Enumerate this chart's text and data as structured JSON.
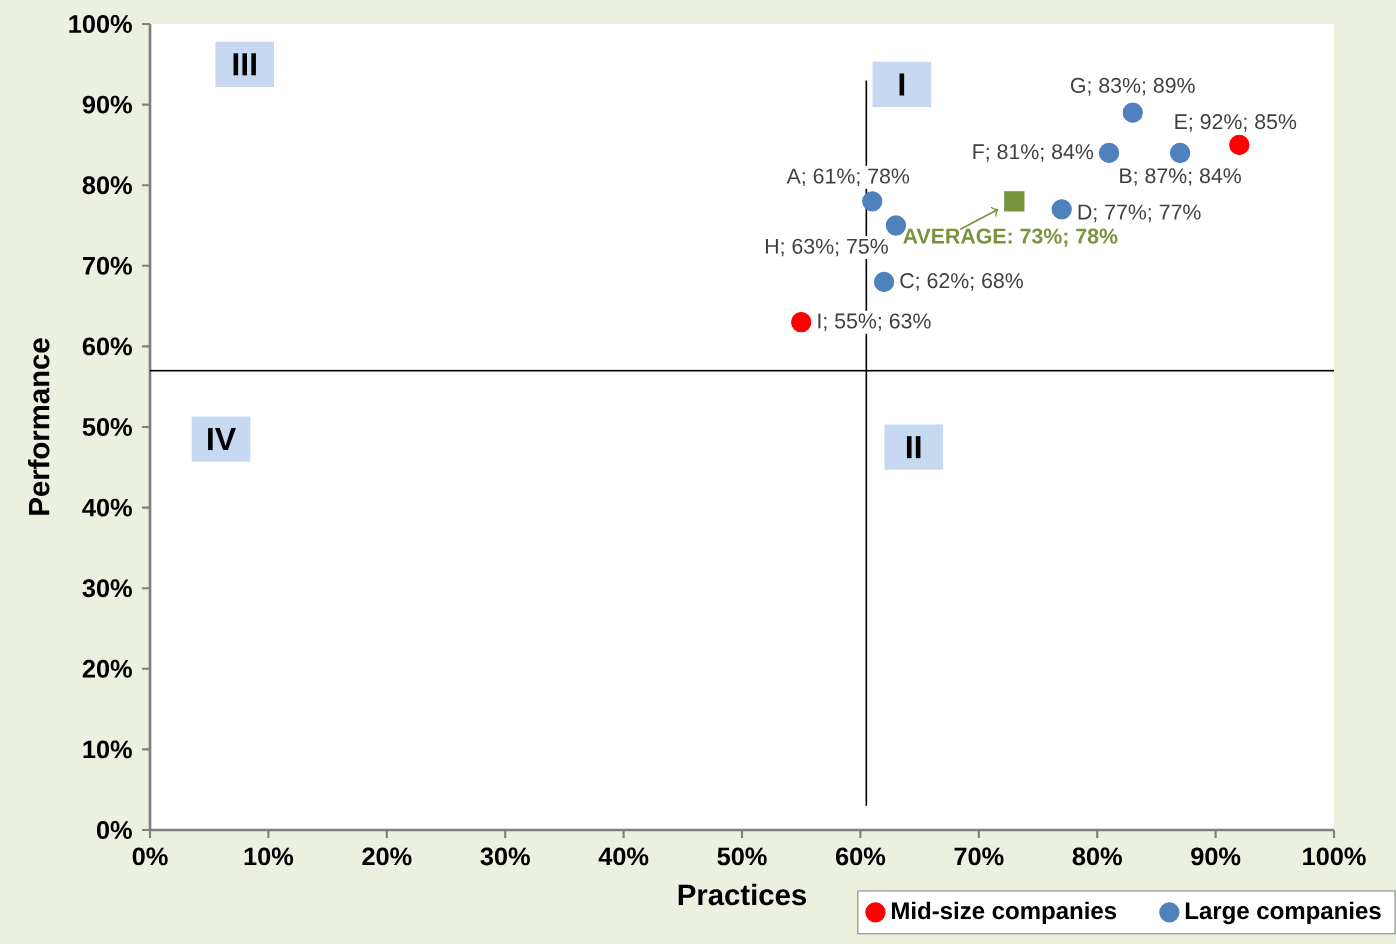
{
  "chart_data": {
    "type": "scatter",
    "xlabel": "Practices",
    "ylabel": "Performance",
    "xlim": [
      0,
      100
    ],
    "ylim": [
      0,
      100
    ],
    "xticks": [
      {
        "value": 0,
        "label": "0%"
      },
      {
        "value": 10,
        "label": "10%"
      },
      {
        "value": 20,
        "label": "20%"
      },
      {
        "value": 30,
        "label": "30%"
      },
      {
        "value": 40,
        "label": "40%"
      },
      {
        "value": 50,
        "label": "50%"
      },
      {
        "value": 60,
        "label": "60%"
      },
      {
        "value": 70,
        "label": "70%"
      },
      {
        "value": 80,
        "label": "80%"
      },
      {
        "value": 90,
        "label": "90%"
      },
      {
        "value": 100,
        "label": "100%"
      }
    ],
    "yticks": [
      {
        "value": 0,
        "label": "0%"
      },
      {
        "value": 10,
        "label": "10%"
      },
      {
        "value": 20,
        "label": "20%"
      },
      {
        "value": 30,
        "label": "30%"
      },
      {
        "value": 40,
        "label": "40%"
      },
      {
        "value": 50,
        "label": "50%"
      },
      {
        "value": 60,
        "label": "60%"
      },
      {
        "value": 70,
        "label": "70%"
      },
      {
        "value": 80,
        "label": "80%"
      },
      {
        "value": 90,
        "label": "90%"
      },
      {
        "value": 100,
        "label": "100%"
      }
    ],
    "legend": "bottom right",
    "series": [
      {
        "name": "Mid-size companies",
        "color": "#ff0000",
        "marker": "circle",
        "x": [
          55,
          92
        ],
        "values": [
          63,
          85
        ],
        "value_labels": [
          "I; 55%; 63%",
          "E; 92%; 85%"
        ]
      },
      {
        "name": "Large companies",
        "color": "#4f81bd",
        "marker": "circle",
        "x": [
          61,
          87,
          62,
          77,
          81,
          83,
          63
        ],
        "values": [
          78,
          84,
          68,
          77,
          84,
          89,
          75
        ],
        "value_labels": [
          "A; 61%; 78%",
          "B; 87%; 84%",
          "C; 62%; 68%",
          "D; 77%; 77%",
          "F; 81%; 84%",
          "G; 83%; 89%",
          "H; 63%; 75%"
        ]
      },
      {
        "color": "#77933c",
        "marker": "square",
        "x": [
          73
        ],
        "values": [
          78
        ],
        "value_labels": [
          "AVERAGE: 73%; 78%"
        ]
      }
    ],
    "ref_lines": [
      {
        "axis": "x",
        "value": 60.5
      },
      {
        "axis": "y",
        "value": 57
      }
    ],
    "annotations": [
      "III",
      "I",
      "IV",
      "II"
    ]
  }
}
